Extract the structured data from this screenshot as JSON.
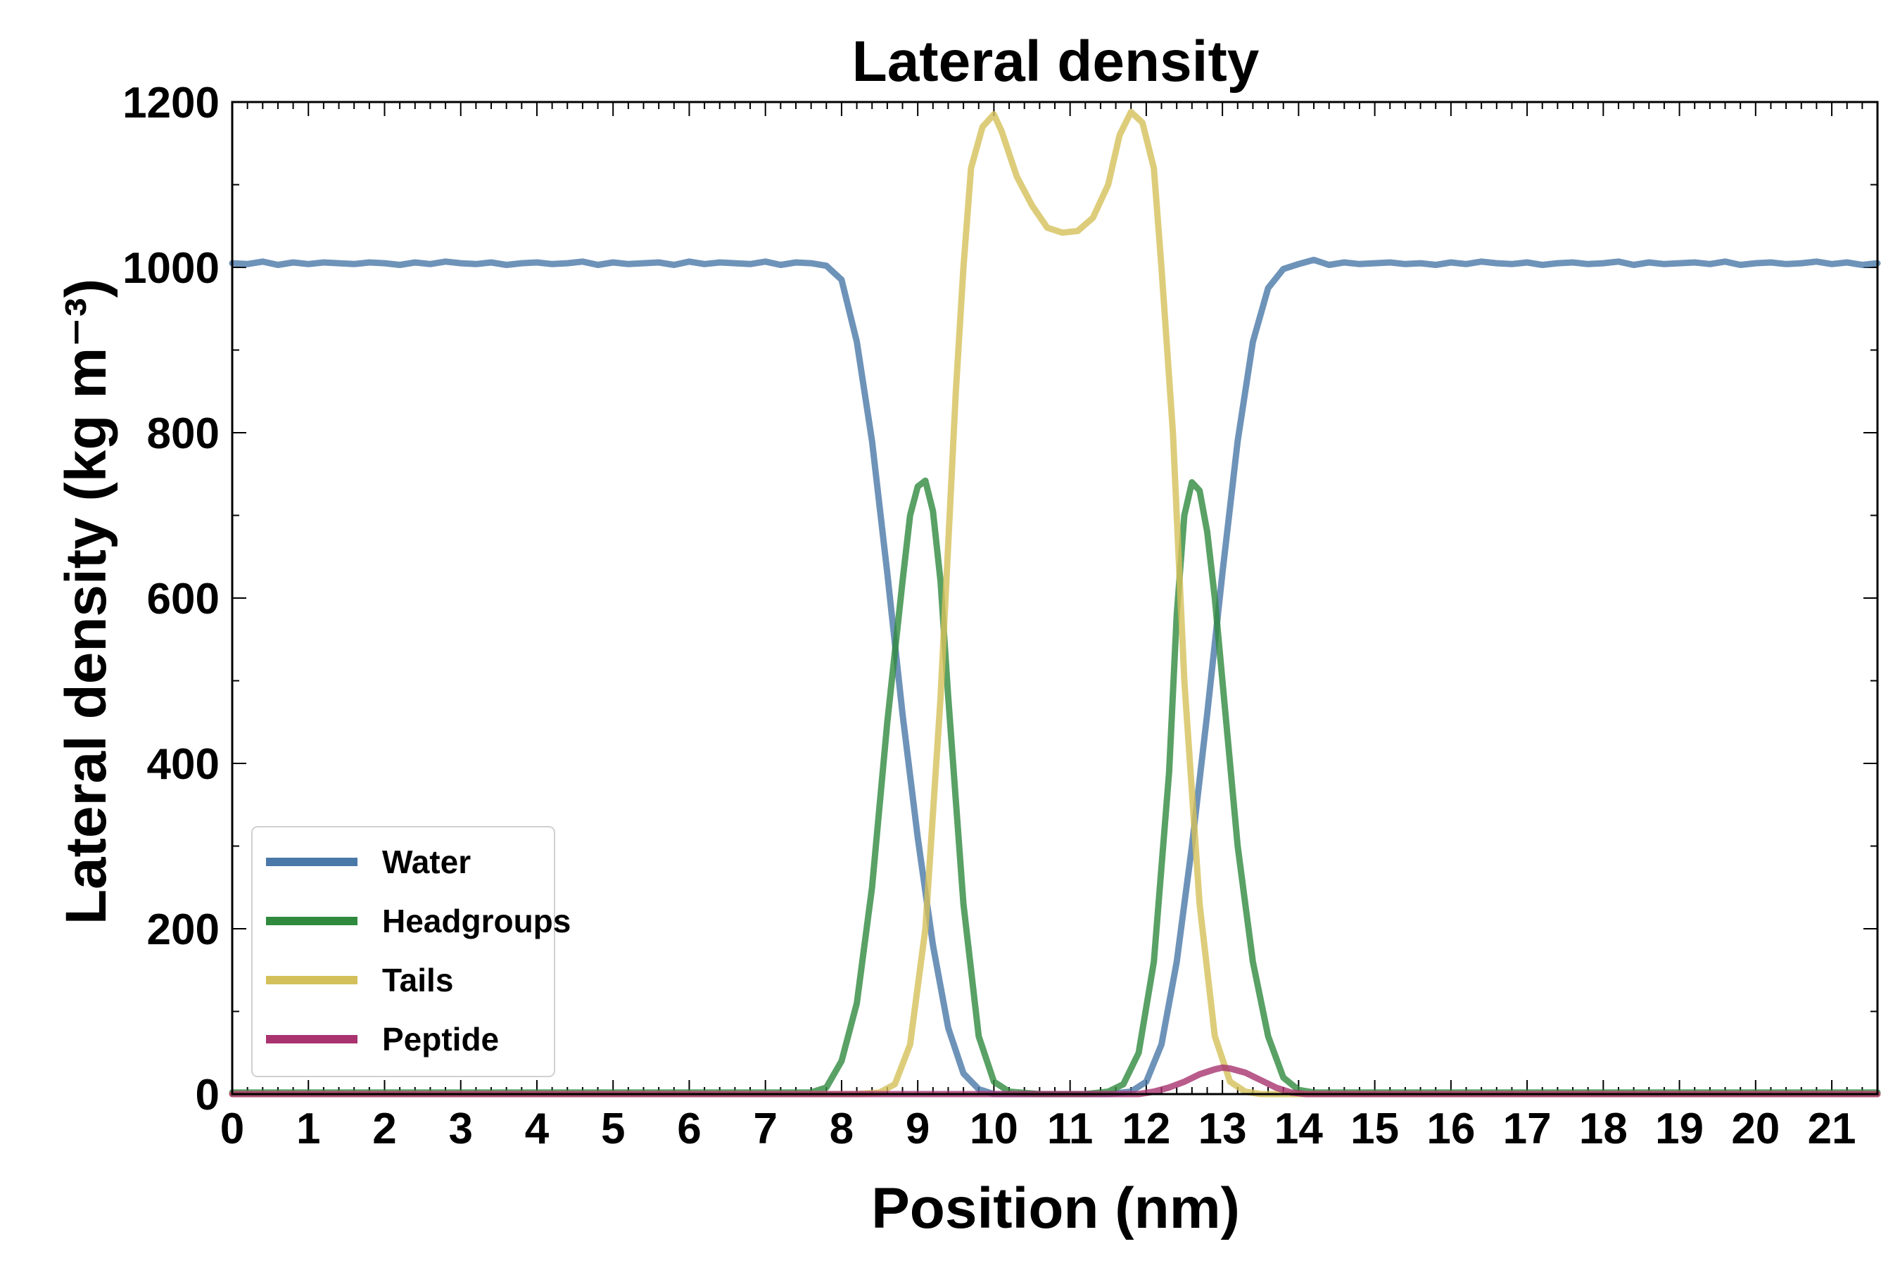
{
  "chart_data": {
    "type": "line",
    "title": "Lateral density",
    "xlabel": "Position (nm)",
    "ylabel": "Lateral density (kg m⁻³)",
    "xlim": [
      0,
      21.6
    ],
    "ylim": [
      0,
      1200
    ],
    "x_ticks": [
      0,
      1,
      2,
      3,
      4,
      5,
      6,
      7,
      8,
      9,
      10,
      11,
      12,
      13,
      14,
      15,
      16,
      17,
      18,
      19,
      20,
      21
    ],
    "y_ticks": [
      0,
      200,
      400,
      600,
      800,
      1000,
      1200
    ],
    "grid": false,
    "legend_position": "lower-left",
    "series": [
      {
        "name": "Water",
        "color": "#4a78a8",
        "points": [
          [
            0,
            1005
          ],
          [
            0.2,
            1004
          ],
          [
            0.4,
            1007
          ],
          [
            0.6,
            1003
          ],
          [
            0.8,
            1006
          ],
          [
            1,
            1004
          ],
          [
            1.2,
            1006
          ],
          [
            1.4,
            1005
          ],
          [
            1.6,
            1004
          ],
          [
            1.8,
            1006
          ],
          [
            2,
            1005
          ],
          [
            2.2,
            1003
          ],
          [
            2.4,
            1006
          ],
          [
            2.6,
            1004
          ],
          [
            2.8,
            1007
          ],
          [
            3,
            1005
          ],
          [
            3.2,
            1004
          ],
          [
            3.4,
            1006
          ],
          [
            3.6,
            1003
          ],
          [
            3.8,
            1005
          ],
          [
            4,
            1006
          ],
          [
            4.2,
            1004
          ],
          [
            4.4,
            1005
          ],
          [
            4.6,
            1007
          ],
          [
            4.8,
            1003
          ],
          [
            5,
            1006
          ],
          [
            5.2,
            1004
          ],
          [
            5.4,
            1005
          ],
          [
            5.6,
            1006
          ],
          [
            5.8,
            1003
          ],
          [
            6,
            1007
          ],
          [
            6.2,
            1004
          ],
          [
            6.4,
            1006
          ],
          [
            6.6,
            1005
          ],
          [
            6.8,
            1004
          ],
          [
            7,
            1007
          ],
          [
            7.2,
            1003
          ],
          [
            7.4,
            1006
          ],
          [
            7.6,
            1005
          ],
          [
            7.8,
            1002
          ],
          [
            8.0,
            985
          ],
          [
            8.2,
            910
          ],
          [
            8.4,
            790
          ],
          [
            8.6,
            630
          ],
          [
            8.8,
            460
          ],
          [
            9.0,
            310
          ],
          [
            9.2,
            180
          ],
          [
            9.4,
            80
          ],
          [
            9.6,
            25
          ],
          [
            9.8,
            6
          ],
          [
            10.0,
            0
          ],
          [
            10.5,
            0
          ],
          [
            11.0,
            0
          ],
          [
            11.5,
            0
          ],
          [
            11.8,
            3
          ],
          [
            12.0,
            15
          ],
          [
            12.2,
            60
          ],
          [
            12.4,
            160
          ],
          [
            12.6,
            300
          ],
          [
            12.8,
            460
          ],
          [
            13.0,
            630
          ],
          [
            13.2,
            790
          ],
          [
            13.4,
            910
          ],
          [
            13.6,
            975
          ],
          [
            13.8,
            998
          ],
          [
            14.0,
            1004
          ],
          [
            14.2,
            1009
          ],
          [
            14.4,
            1003
          ],
          [
            14.6,
            1006
          ],
          [
            14.8,
            1004
          ],
          [
            15,
            1005
          ],
          [
            15.2,
            1006
          ],
          [
            15.4,
            1004
          ],
          [
            15.6,
            1005
          ],
          [
            15.8,
            1003
          ],
          [
            16,
            1006
          ],
          [
            16.2,
            1004
          ],
          [
            16.4,
            1007
          ],
          [
            16.6,
            1005
          ],
          [
            16.8,
            1004
          ],
          [
            17,
            1006
          ],
          [
            17.2,
            1003
          ],
          [
            17.4,
            1005
          ],
          [
            17.6,
            1006
          ],
          [
            17.8,
            1004
          ],
          [
            18,
            1005
          ],
          [
            18.2,
            1007
          ],
          [
            18.4,
            1003
          ],
          [
            18.6,
            1006
          ],
          [
            18.8,
            1004
          ],
          [
            19,
            1005
          ],
          [
            19.2,
            1006
          ],
          [
            19.4,
            1004
          ],
          [
            19.6,
            1007
          ],
          [
            19.8,
            1003
          ],
          [
            20,
            1005
          ],
          [
            20.2,
            1006
          ],
          [
            20.4,
            1004
          ],
          [
            20.6,
            1005
          ],
          [
            20.8,
            1007
          ],
          [
            21,
            1004
          ],
          [
            21.2,
            1006
          ],
          [
            21.4,
            1003
          ],
          [
            21.6,
            1005
          ]
        ]
      },
      {
        "name": "Headgroups",
        "color": "#2f8a3e",
        "points": [
          [
            0,
            2
          ],
          [
            7.6,
            2
          ],
          [
            7.8,
            8
          ],
          [
            8.0,
            40
          ],
          [
            8.2,
            110
          ],
          [
            8.4,
            250
          ],
          [
            8.6,
            450
          ],
          [
            8.8,
            620
          ],
          [
            8.9,
            700
          ],
          [
            9.0,
            735
          ],
          [
            9.1,
            742
          ],
          [
            9.2,
            705
          ],
          [
            9.3,
            620
          ],
          [
            9.4,
            480
          ],
          [
            9.6,
            230
          ],
          [
            9.8,
            70
          ],
          [
            10.0,
            15
          ],
          [
            10.2,
            3
          ],
          [
            10.6,
            0
          ],
          [
            11.2,
            0
          ],
          [
            11.5,
            3
          ],
          [
            11.7,
            12
          ],
          [
            11.9,
            50
          ],
          [
            12.1,
            160
          ],
          [
            12.3,
            390
          ],
          [
            12.4,
            580
          ],
          [
            12.5,
            700
          ],
          [
            12.6,
            740
          ],
          [
            12.7,
            730
          ],
          [
            12.8,
            680
          ],
          [
            12.9,
            600
          ],
          [
            13.0,
            500
          ],
          [
            13.2,
            300
          ],
          [
            13.4,
            160
          ],
          [
            13.6,
            70
          ],
          [
            13.8,
            20
          ],
          [
            14.0,
            5
          ],
          [
            14.2,
            2
          ],
          [
            21.6,
            2
          ]
        ]
      },
      {
        "name": "Tails",
        "color": "#d4c05a",
        "points": [
          [
            0,
            0
          ],
          [
            8.2,
            0
          ],
          [
            8.5,
            2
          ],
          [
            8.7,
            12
          ],
          [
            8.9,
            60
          ],
          [
            9.1,
            200
          ],
          [
            9.3,
            480
          ],
          [
            9.5,
            850
          ],
          [
            9.6,
            1000
          ],
          [
            9.7,
            1120
          ],
          [
            9.85,
            1170
          ],
          [
            10.0,
            1185
          ],
          [
            10.1,
            1165
          ],
          [
            10.3,
            1110
          ],
          [
            10.5,
            1075
          ],
          [
            10.7,
            1048
          ],
          [
            10.9,
            1042
          ],
          [
            11.1,
            1044
          ],
          [
            11.3,
            1060
          ],
          [
            11.5,
            1100
          ],
          [
            11.65,
            1160
          ],
          [
            11.8,
            1188
          ],
          [
            11.95,
            1175
          ],
          [
            12.1,
            1120
          ],
          [
            12.2,
            1000
          ],
          [
            12.35,
            800
          ],
          [
            12.5,
            500
          ],
          [
            12.7,
            230
          ],
          [
            12.9,
            70
          ],
          [
            13.1,
            15
          ],
          [
            13.3,
            3
          ],
          [
            13.5,
            0
          ],
          [
            21.6,
            0
          ]
        ]
      },
      {
        "name": "Peptide",
        "color": "#a8336f",
        "points": [
          [
            0,
            0
          ],
          [
            11.9,
            0
          ],
          [
            12.1,
            3
          ],
          [
            12.3,
            8
          ],
          [
            12.5,
            15
          ],
          [
            12.7,
            24
          ],
          [
            12.9,
            30
          ],
          [
            13.0,
            32
          ],
          [
            13.1,
            31
          ],
          [
            13.3,
            26
          ],
          [
            13.5,
            17
          ],
          [
            13.7,
            8
          ],
          [
            13.9,
            2
          ],
          [
            14.1,
            0
          ],
          [
            21.6,
            0
          ]
        ]
      }
    ]
  }
}
